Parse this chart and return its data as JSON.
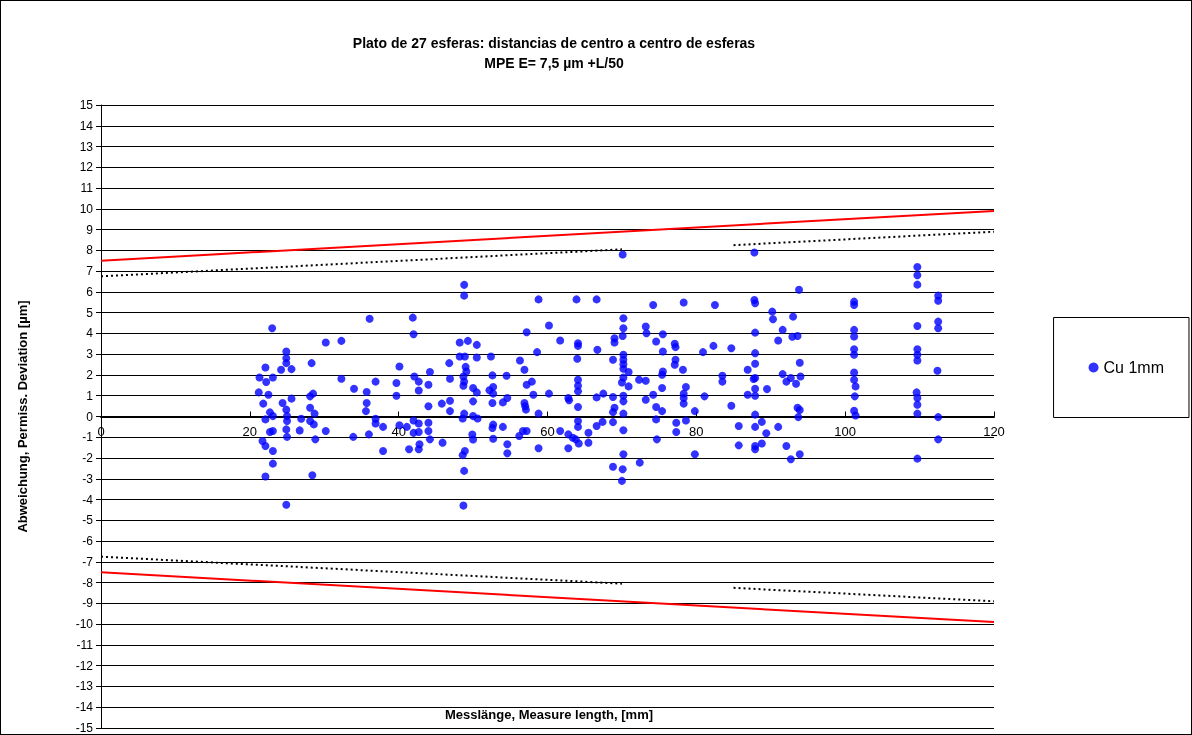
{
  "chart_data": {
    "type": "scatter",
    "title": "Plato de 27 esferas: distancias de centro a centro de esferas",
    "subtitle": "MPE E= 7,5 µm +L/50",
    "xlabel": "Messlänge, Measure length, [mm]",
    "ylabel": "Abweichung, Permiss. Deviation [µm]",
    "xlim": [
      0,
      120
    ],
    "xticks": [
      0,
      20,
      40,
      60,
      80,
      100,
      120
    ],
    "ylim": [
      -15,
      15
    ],
    "yticks": [
      -15,
      -14,
      -13,
      -12,
      -11,
      -10,
      -9,
      -8,
      -7,
      -6,
      -5,
      -4,
      -3,
      -2,
      -1,
      0,
      1,
      2,
      3,
      4,
      5,
      6,
      7,
      8,
      9,
      10,
      11,
      12,
      13,
      14,
      15
    ],
    "grid": "y",
    "legend": "right",
    "marker": "circle",
    "series": [
      {
        "name": "Cu 1mm",
        "type": "scatter",
        "color": "#0000ff",
        "x": [
          23.0,
          22.1,
          21.3,
          22.2,
          23.1,
          21.2,
          22.5,
          21.8,
          22.7,
          22.1,
          23.1,
          22.7,
          23.1,
          21.7,
          22.1,
          23.1,
          23.1,
          22.1,
          24.9,
          24.9,
          24.9,
          24.2,
          25.6,
          24.4,
          25.6,
          24.9,
          25.0,
          25.0,
          24.9,
          25.0,
          24.9,
          26.9,
          26.7,
          28.3,
          28.1,
          28.5,
          28.1,
          28.7,
          28.1,
          28.6,
          28.8,
          28.4,
          30.2,
          30.2,
          32.3,
          32.3,
          34.0,
          33.9,
          36.1,
          35.7,
          36.9,
          35.7,
          35.6,
          36.9,
          36.9,
          36.0,
          37.9,
          37.9,
          39.7,
          39.7,
          40.1,
          40.1,
          41.9,
          42.0,
          42.1,
          42.7,
          42.7,
          41.1,
          42.0,
          42.0,
          42.7,
          42.7,
          41.4,
          42.8,
          42.7,
          44.2,
          44.0,
          44.0,
          44.0,
          44.0,
          44.2,
          45.9,
          45.8,
          46.8,
          46.9,
          46.9,
          46.9,
          48.8,
          48.8,
          48.2,
          49.3,
          48.2,
          48.9,
          49.0,
          49.1,
          48.7,
          48.8,
          48.7,
          50.5,
          50.5,
          50.0,
          50.5,
          50.0,
          48.8,
          48.6,
          50.0,
          50.6,
          49.9,
          50.0,
          48.9,
          48.6,
          48.8,
          48.7,
          52.4,
          52.6,
          52.2,
          52.7,
          52.7,
          52.6,
          52.7,
          52.6,
          52.7,
          54.0,
          54.0,
          54.5,
          54.6,
          54.6,
          54.6,
          56.2,
          56.7,
          57.2,
          56.3,
          56.9,
          57.2,
          57.2,
          57.9,
          56.9,
          57.0,
          57.1,
          58.1,
          58.6,
          58.8,
          58.8,
          58.8,
          60.2,
          60.2,
          61.7,
          61.7,
          62.8,
          62.9,
          62.8,
          62.8,
          63.4,
          63.9,
          64.1,
          64.1,
          64.0,
          64.1,
          64.1,
          64.1,
          64.1,
          64.1,
          64.1,
          63.8,
          64.2,
          65.5,
          65.5,
          66.6,
          66.7,
          66.6,
          67.5,
          66.6,
          67.4,
          69.0,
          69.0,
          68.8,
          68.8,
          69.0,
          68.8,
          68.8,
          68.8,
          70.2,
          70.2,
          70.1,
          70.2,
          70.2,
          70.2,
          70.2,
          70.9,
          70.2,
          70.0,
          70.9,
          70.2,
          70.2,
          70.2,
          70.2,
          70.2,
          70.1,
          70.0,
          72.4,
          72.3,
          73.2,
          73.2,
          73.3,
          73.2,
          74.2,
          74.2,
          74.6,
          75.5,
          75.5,
          75.4,
          75.5,
          75.4,
          74.6,
          75.4,
          74.6,
          74.7,
          77.1,
          77.2,
          77.2,
          77.1,
          78.2,
          78.6,
          78.3,
          78.3,
          78.3,
          77.3,
          77.3,
          78.6,
          78.3,
          79.8,
          79.8,
          80.9,
          81.1,
          82.3,
          82.5,
          83.5,
          83.5,
          84.7,
          84.7,
          85.7,
          85.7,
          86.9,
          86.9,
          87.8,
          87.9,
          87.9,
          87.9,
          87.9,
          87.7,
          87.9,
          87.9,
          87.9,
          87.9,
          87.9,
          87.9,
          87.9,
          88.8,
          88.8,
          89.4,
          89.5,
          90.2,
          90.3,
          91.0,
          91.0,
          91.6,
          91.6,
          92.1,
          92.1,
          92.7,
          92.9,
          93.0,
          92.7,
          93.4,
          93.6,
          93.8,
          93.9,
          94.0,
          93.6,
          93.9,
          93.7,
          93.9,
          101.2,
          101.2,
          101.2,
          101.2,
          101.2,
          101.2,
          101.2,
          101.2,
          101.4,
          101.3,
          101.2,
          101.4,
          109.7,
          109.7,
          109.7,
          109.7,
          109.7,
          109.7,
          109.7,
          109.6,
          109.7,
          109.7,
          109.7,
          109.7,
          112.5,
          112.5,
          112.5,
          112.5,
          112.4,
          112.5,
          112.5,
          87.8,
          70.1
        ],
        "values": [
          4.25,
          2.36,
          1.88,
          1.66,
          1.88,
          1.16,
          1.05,
          0.62,
          0.2,
          -0.14,
          0.02,
          -0.75,
          -0.7,
          -1.18,
          -1.42,
          -1.66,
          -2.27,
          -2.89,
          3.13,
          2.81,
          2.57,
          2.25,
          2.28,
          0.65,
          0.86,
          0.33,
          0.02,
          -0.22,
          -0.62,
          -0.98,
          -4.25,
          -0.11,
          -0.67,
          2.57,
          0.97,
          1.1,
          0.42,
          0.14,
          -0.22,
          -0.38,
          -1.1,
          -2.83,
          3.56,
          -0.7,
          3.64,
          1.82,
          1.34,
          -0.98,
          4.71,
          1.18,
          1.68,
          0.65,
          0.26,
          -0.11,
          -0.34,
          -0.86,
          -0.5,
          -1.66,
          1.61,
          1.0,
          2.41,
          -0.42,
          4.76,
          3.96,
          1.93,
          1.68,
          1.25,
          -0.5,
          -0.19,
          -0.79,
          -0.75,
          -0.34,
          -1.58,
          -1.34,
          -1.58,
          2.14,
          1.53,
          0.49,
          -0.3,
          -0.7,
          -1.1,
          -1.26,
          0.62,
          2.57,
          1.82,
          0.76,
          0.26,
          6.34,
          5.82,
          3.56,
          3.64,
          2.89,
          2.89,
          2.39,
          2.17,
          1.93,
          1.68,
          1.48,
          3.45,
          2.84,
          1.37,
          1.16,
          0.73,
          0.14,
          -0.1,
          0.02,
          -0.1,
          -0.87,
          -1.11,
          -1.66,
          -1.86,
          -2.62,
          -4.29,
          2.89,
          1.98,
          1.26,
          1.42,
          1.1,
          0.65,
          -0.39,
          -0.55,
          -1.07,
          0.68,
          -0.5,
          1.96,
          0.89,
          -1.34,
          -1.77,
          -0.94,
          -0.7,
          -0.7,
          2.7,
          2.25,
          4.06,
          1.53,
          1.68,
          0.65,
          0.49,
          0.33,
          1.05,
          3.1,
          5.64,
          0.14,
          -1.53,
          4.38,
          1.1,
          3.66,
          -0.7,
          0.89,
          0.78,
          -0.86,
          -1.53,
          -1.02,
          5.64,
          3.53,
          3.4,
          2.78,
          1.77,
          1.48,
          1.21,
          0.46,
          -0.22,
          -0.5,
          -1.1,
          -1.3,
          -0.78,
          -1.26,
          5.64,
          3.21,
          0.92,
          1.1,
          -0.46,
          -0.26,
          3.77,
          3.56,
          2.73,
          0.94,
          0.42,
          0.21,
          -0.27,
          -2.42,
          4.73,
          4.25,
          3.88,
          2.97,
          2.73,
          2.52,
          2.3,
          2.14,
          1.88,
          1.64,
          1.45,
          1.0,
          0.73,
          0.14,
          -0.66,
          -1.82,
          -2.54,
          -3.1,
          -2.22,
          1.77,
          1.72,
          4.33,
          4.01,
          0.81,
          5.37,
          1.05,
          3.61,
          3.96,
          3.13,
          2.01,
          2.17,
          1.37,
          0.46,
          0.26,
          -0.14,
          -1.1,
          3.5,
          3.34,
          2.73,
          2.49,
          2.25,
          1.42,
          1.1,
          0.89,
          0.62,
          -0.3,
          -0.75,
          -0.19,
          5.49,
          0.26,
          -1.82,
          3.1,
          0.97,
          3.4,
          5.37,
          1.96,
          1.68,
          3.29,
          0.52,
          -0.46,
          -1.39,
          2.25,
          1.05,
          5.61,
          5.45,
          4.04,
          3.05,
          2.54,
          1.81,
          1.85,
          1.34,
          1.0,
          0.09,
          -0.5,
          -1.42,
          -1.58,
          -0.26,
          -1.3,
          -0.81,
          1.32,
          5.05,
          4.68,
          -0.5,
          3.66,
          4.17,
          2.04,
          1.68,
          -1.42,
          -2.06,
          3.84,
          4.81,
          1.85,
          1.58,
          3.88,
          6.1,
          2.59,
          1.93,
          0.42,
          0.31,
          -0.03,
          -1.82,
          5.53,
          5.37,
          4.17,
          3.85,
          3.24,
          2.97,
          2.12,
          1.77,
          1.45,
          0.97,
          0.28,
          0.05,
          7.2,
          6.8,
          6.35,
          4.36,
          3.24,
          2.97,
          2.7,
          1.16,
          0.89,
          0.57,
          0.14,
          -2.03,
          5.82,
          5.57,
          4.57,
          4.25,
          2.2,
          -0.03,
          -1.1,
          7.9,
          7.8
        ]
      },
      {
        "type": "line",
        "color": "#ff0000",
        "marker": "none",
        "line_style": "solid",
        "x": [
          0,
          120
        ],
        "values": [
          7.5,
          9.9
        ]
      },
      {
        "type": "line",
        "color": "#ff0000",
        "marker": "none",
        "line_style": "solid",
        "x": [
          0,
          120
        ],
        "values": [
          -7.5,
          -9.9
        ]
      },
      {
        "type": "line",
        "color": "#000000",
        "marker": "none",
        "line_style": "dotted",
        "x": [
          0,
          70
        ],
        "values": [
          6.75,
          8.05
        ]
      },
      {
        "type": "line",
        "color": "#000000",
        "marker": "none",
        "line_style": "dotted",
        "x": [
          85,
          120
        ],
        "values": [
          8.25,
          8.9
        ]
      },
      {
        "type": "line",
        "color": "#000000",
        "marker": "none",
        "line_style": "dotted",
        "x": [
          0,
          70
        ],
        "values": [
          -6.75,
          -8.05
        ]
      },
      {
        "type": "line",
        "color": "#000000",
        "marker": "none",
        "line_style": "dotted",
        "x": [
          85,
          120
        ],
        "values": [
          -8.25,
          -8.9
        ]
      }
    ]
  }
}
